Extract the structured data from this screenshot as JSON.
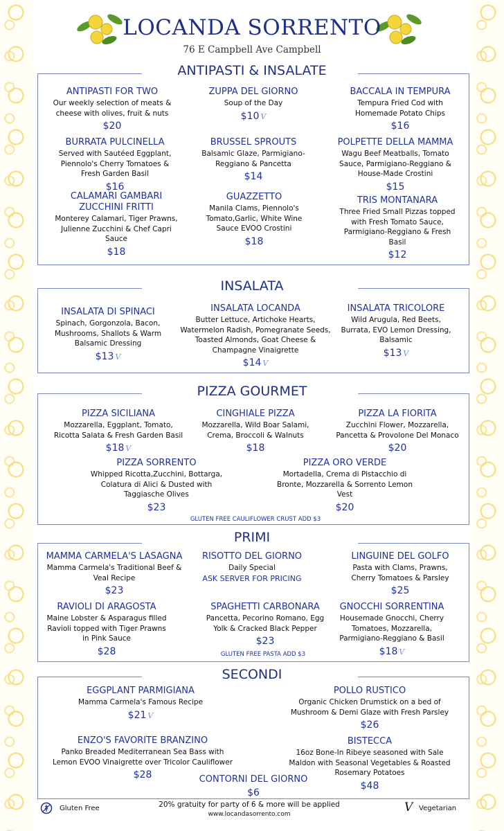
{
  "header": {
    "name": "LOCANDA SORRENTO",
    "address": "76 E Campbell Ave Campbell"
  },
  "colors": {
    "accent": "#1f2fa0",
    "title": "#1f2f86",
    "border_yellow": "#f6dc7a"
  },
  "sections": [
    {
      "title": "ANTIPASTI & INSALATE",
      "items": [
        {
          "name": "ANTIPASTI FOR TWO",
          "desc": "Our weekly selection of meats &\ncheese with olives, fruit & nuts",
          "price": "$20"
        },
        {
          "name": "ZUPPA DEL GIORNO",
          "desc": "Soup of the Day",
          "price": "$10",
          "veg": true
        },
        {
          "name": "BACCALA IN TEMPURA",
          "desc": "Tempura Fried Cod with\nHomemade Potato Chips",
          "price": "$16"
        },
        {
          "name": "BURRATA PULCINELLA",
          "desc": "Served with Sautéed Eggplant,\nPiennolo's Cherry Tomatoes &\nFresh Garden Basil",
          "price": "$16"
        },
        {
          "name": "BRUSSEL SPROUTS",
          "desc": "Balsamic Glaze, Parmigiano-\nReggiano & Pancetta",
          "price": "$14"
        },
        {
          "name": "POLPETTE DELLA MAMMA",
          "desc": "Wagu Beef Meatballs, Tomato\nSauce, Parmigiano-Reggiano &\nHouse-Made Crostini",
          "price": "$15"
        },
        {
          "name": "CALAMARI GAMBARI\nZUCCHINI FRITTI",
          "desc": "Monterey Calamari, Tiger Prawns,\nJulienne Zucchini & Chef Capri\nSauce",
          "price": "$18"
        },
        {
          "name": "GUAZZETTO",
          "desc": "Manila Clams, Piennolo's\nTomato,Garlic, White Wine\nSauce EVOO Crostini",
          "price": "$18"
        },
        {
          "name": "TRIS MONTANARA",
          "desc": "Three Fried Small Pizzas topped\nwith Fresh Tomato Sauce,\nParmigiano-Reggiano & Fresh\nBasil",
          "price": "$12"
        }
      ]
    },
    {
      "title": "INSALATA",
      "items": [
        {
          "name": "INSALATA DI SPINACI",
          "desc": "Spinach, Gorgonzola, Bacon,\nMushrooms, Shallots & Warm\nBalsamic Dressing",
          "price": "$13",
          "veg": true
        },
        {
          "name": "INSALATA LOCANDA",
          "desc": "Butter Lettuce, Artichoke Hearts,\nWatermelon Radish, Pomegranate Seeds,\nToasted Almonds, Goat Cheese &\nChampagne Vinaigrette",
          "price": "$14",
          "veg": true
        },
        {
          "name": "INSALATA TRICOLORE",
          "desc": "Wild Arugula, Red Beets,\nBurrata, EVO Lemon Dressing,\nBalsamic",
          "price": "$13",
          "veg": true
        }
      ]
    },
    {
      "title": "PIZZA GOURMET",
      "note": "GLUTEN FREE CAULIFLOWER CRUST ADD $3",
      "items": [
        {
          "name": "PIZZA SICILIANA",
          "desc": "Mozzarella, Eggplant, Tomato,\nRicotta Salata & Fresh Garden Basil",
          "price": "$18",
          "veg": true
        },
        {
          "name": "CINGHIALE PIZZA",
          "desc": "Mozzarella, Wild Boar Salami,\nCrema, Broccoli & Walnuts",
          "price": "$18"
        },
        {
          "name": "PIZZA LA FIORITA",
          "desc": "Zucchini Flower, Mozzarella,\nPancetta & Provolone Del Monaco",
          "price": "$20"
        },
        {
          "name": "PIZZA SORRENTO",
          "desc": "Whipped Ricotta,Zucchini, Bottarga,\nColatura di Alici & Dusted with\nTaggiasche Olives",
          "price": "$23"
        },
        {
          "name": "PIZZA ORO VERDE",
          "desc": "Mortadella, Crema di Pistacchio di\nBronte, Mozzarella & Sorrento Lemon\nVest",
          "price": "$20"
        }
      ]
    },
    {
      "title": "PRIMI",
      "note": "GLUTEN FREE PASTA ADD $3",
      "items": [
        {
          "name": "MAMMA CARMELA'S LASAGNA",
          "desc": "Mamma Carmela's Traditional Beef &\nVeal Recipe",
          "price": "$23"
        },
        {
          "name": "RISOTTO DEL GIORNO",
          "desc": "Daily Special",
          "ask": "ASK SERVER FOR PRICING"
        },
        {
          "name": "LINGUINE DEL GOLFO",
          "desc": "Pasta with Clams, Prawns,\nCherry Tomatoes & Parsley",
          "price": "$25"
        },
        {
          "name": "RAVIOLI DI ARAGOSTA",
          "desc": "Maine Lobster & Asparagus filled\nRavioli topped with Tiger Prawns\nin Pink Sauce",
          "price": "$28"
        },
        {
          "name": "SPAGHETTI CARBONARA",
          "desc": "Pancetta, Pecorino Romano, Egg\nYolk & Cracked Black Pepper",
          "price": "$23"
        },
        {
          "name": "GNOCCHI SORRENTINA",
          "desc": "Housemade Gnocchi, Cherry\nTomatoes, Mozzarella,\nParmigiano-Reggiano & Basil",
          "price": "$18",
          "veg": true
        }
      ]
    },
    {
      "title": "SECONDI",
      "items": [
        {
          "name": "EGGPLANT PARMIGIANA",
          "desc": "Mamma Carmela's Famous Recipe",
          "price": "$21",
          "veg": true
        },
        {
          "name": "POLLO RUSTICO",
          "desc": "Organic Chicken Drumstick on a bed of\nMushroom & Demi Glaze with Fresh Parsley",
          "price": "$26"
        },
        {
          "name": "ENZO'S FAVORITE BRANZINO",
          "desc": "Panko Breaded Mediterranean Sea Bass with\nLemon EVOO Vinaigrette over Tricolor Cauliflower",
          "price": "$28"
        },
        {
          "name": "BISTECCA",
          "desc": "16oz Bone-In Ribeye seasoned with Sale\nMaldon with Seasonal Vegetables & Roasted\nRosemary Potatoes",
          "price": "$48"
        },
        {
          "name": "CONTORNI DEL GIORNO",
          "price": "$6"
        }
      ]
    }
  ],
  "footer": {
    "gluten_free": "Gluten Free",
    "gratuity": "20% gratuity for party of 6 & more will be applied",
    "website": "www.locandasorrento.com",
    "vegetarian": "Vegetarian",
    "veg_icon": "vegetarian-v-icon",
    "gf_icon": "gluten-free-icon"
  }
}
